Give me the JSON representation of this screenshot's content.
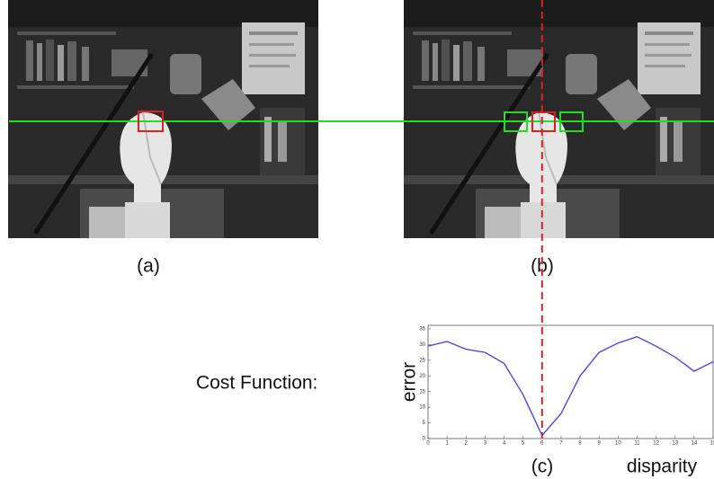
{
  "figure": {
    "label_a": "(a)",
    "label_b": "(b)",
    "cost_label": "Cost Function:"
  },
  "chart_data": {
    "type": "line",
    "xlabel": "disparity",
    "ylabel": "error",
    "caption": "(c)",
    "x": [
      0,
      1,
      2,
      3,
      4,
      5,
      6,
      7,
      8,
      9,
      10,
      11,
      12,
      13,
      14,
      15
    ],
    "values": [
      29.5,
      31,
      28.5,
      27.5,
      24,
      14,
      1,
      8,
      20,
      27.5,
      30.5,
      32.5,
      29.5,
      26,
      21.5,
      24.5
    ],
    "color": "#3a3aff",
    "xlim": [
      0,
      15
    ],
    "xticks": [
      0,
      1,
      2,
      3,
      4,
      5,
      6,
      7,
      8,
      9,
      10,
      11,
      12,
      13,
      14,
      15
    ],
    "ylim": [
      0,
      35
    ],
    "yticks": [
      0,
      5,
      10,
      15,
      20,
      25,
      30,
      35
    ],
    "grid": false,
    "marker_x": 6,
    "marker_color": "#e02020"
  }
}
